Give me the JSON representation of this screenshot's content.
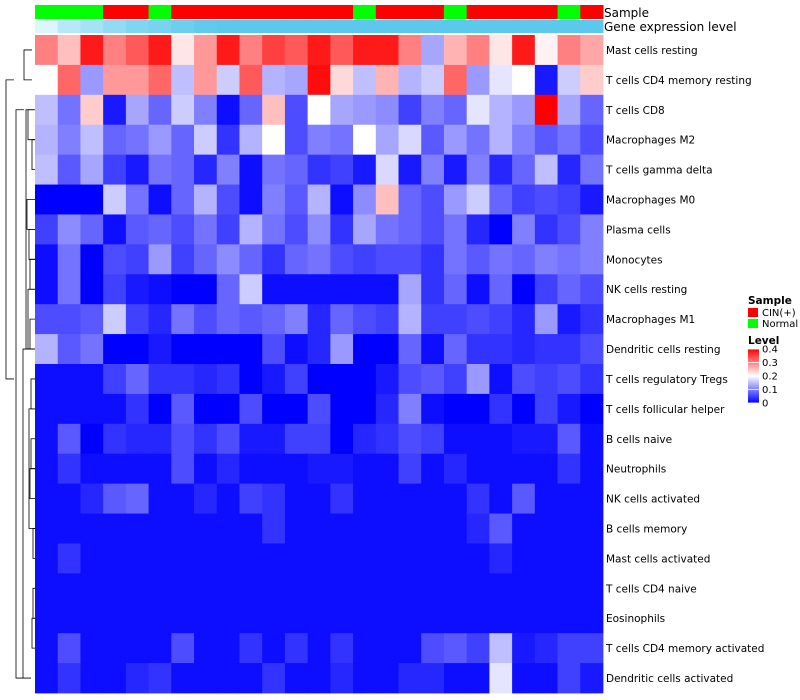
{
  "chart_data": {
    "type": "heatmap",
    "title": "",
    "annotation_tracks": [
      {
        "name": "Sample",
        "values": [
          "N",
          "N",
          "N",
          "C",
          "C",
          "N",
          "C",
          "C",
          "C",
          "C",
          "C",
          "C",
          "C",
          "C",
          "N",
          "C",
          "C",
          "C",
          "N",
          "C",
          "C",
          "C",
          "C",
          "N",
          "C"
        ]
      },
      {
        "name": "Gene expression level",
        "values": [
          0.55,
          0.45,
          0.4,
          0.35,
          0.3,
          0.28,
          0.25,
          0.22,
          0.2,
          0.2,
          0.2,
          0.2,
          0.2,
          0.2,
          0.2,
          0.2,
          0.2,
          0.2,
          0.2,
          0.2,
          0.2,
          0.2,
          0.2,
          0.2,
          0.2
        ]
      }
    ],
    "rows": [
      "Mast cells resting",
      "T cells CD4 memory resting",
      "T cells CD8",
      "Macrophages M2",
      "T cells gamma delta",
      "Macrophages M0",
      "Plasma cells",
      "Monocytes",
      "NK cells resting",
      "Macrophages M1",
      "Dendritic cells resting",
      "T cells regulatory  Tregs",
      "T cells follicular helper",
      "B cells naive",
      "Neutrophils",
      "NK cells activated",
      "B cells memory",
      "Mast cells activated",
      "T cells CD4 naive",
      "Eosinophils",
      "T cells CD4 memory activated",
      "Dendritic cells activated"
    ],
    "matrix": [
      [
        0.3,
        0.25,
        0.38,
        0.3,
        0.33,
        0.38,
        0.22,
        0.28,
        0.38,
        0.3,
        0.35,
        0.33,
        0.38,
        0.33,
        0.38,
        0.38,
        0.3,
        0.13,
        0.26,
        0.3,
        0.22,
        0.38,
        0.21,
        0.3,
        0.27
      ],
      [
        0.2,
        0.32,
        0.12,
        0.28,
        0.28,
        0.32,
        0.15,
        0.28,
        0.16,
        0.33,
        0.14,
        0.13,
        0.39,
        0.23,
        0.15,
        0.26,
        0.14,
        0.16,
        0.32,
        0.12,
        0.18,
        0.2,
        0.02,
        0.16,
        0.24
      ],
      [
        0.15,
        0.09,
        0.24,
        0.02,
        0.13,
        0.08,
        0.16,
        0.1,
        0.01,
        0.08,
        0.25,
        0.06,
        0.2,
        0.13,
        0.12,
        0.11,
        0.05,
        0.1,
        0.08,
        0.18,
        0.14,
        0.12,
        0.4,
        0.13,
        0.08
      ],
      [
        0.14,
        0.1,
        0.15,
        0.08,
        0.09,
        0.12,
        0.08,
        0.16,
        0.04,
        0.14,
        0.2,
        0.06,
        0.1,
        0.09,
        0.2,
        0.13,
        0.17,
        0.07,
        0.12,
        0.09,
        0.14,
        0.1,
        0.07,
        0.09,
        0.06
      ],
      [
        0.15,
        0.07,
        0.13,
        0.05,
        0.02,
        0.09,
        0.08,
        0.03,
        0.1,
        0.01,
        0.09,
        0.08,
        0.04,
        0.05,
        0.02,
        0.17,
        0.02,
        0.1,
        0.02,
        0.1,
        0.03,
        0.08,
        0.15,
        0.03,
        0.09
      ],
      [
        0.0,
        0.0,
        0.0,
        0.16,
        0.09,
        0.01,
        0.08,
        0.14,
        0.06,
        0.01,
        0.1,
        0.07,
        0.14,
        0.01,
        0.11,
        0.25,
        0.08,
        0.06,
        0.12,
        0.16,
        0.08,
        0.05,
        0.06,
        0.05,
        0.02
      ],
      [
        0.05,
        0.11,
        0.08,
        0.01,
        0.07,
        0.08,
        0.06,
        0.09,
        0.05,
        0.14,
        0.09,
        0.06,
        0.11,
        0.04,
        0.13,
        0.09,
        0.08,
        0.06,
        0.09,
        0.03,
        0.0,
        0.1,
        0.04,
        0.06,
        0.1
      ],
      [
        0.01,
        0.09,
        0.0,
        0.06,
        0.05,
        0.12,
        0.05,
        0.08,
        0.11,
        0.08,
        0.04,
        0.08,
        0.09,
        0.06,
        0.05,
        0.06,
        0.06,
        0.04,
        0.09,
        0.07,
        0.09,
        0.08,
        0.1,
        0.09,
        0.1
      ],
      [
        0.01,
        0.09,
        0.0,
        0.05,
        0.02,
        0.01,
        0.0,
        0.0,
        0.08,
        0.16,
        0.01,
        0.01,
        0.01,
        0.01,
        0.01,
        0.01,
        0.13,
        0.04,
        0.08,
        0.01,
        0.08,
        0.0,
        0.05,
        0.08,
        0.06
      ],
      [
        0.06,
        0.06,
        0.07,
        0.16,
        0.05,
        0.03,
        0.09,
        0.06,
        0.08,
        0.07,
        0.08,
        0.1,
        0.03,
        0.08,
        0.06,
        0.05,
        0.14,
        0.05,
        0.05,
        0.06,
        0.05,
        0.03,
        0.12,
        0.02,
        0.04
      ],
      [
        0.14,
        0.07,
        0.09,
        0.0,
        0.0,
        0.02,
        0.0,
        0.0,
        0.0,
        0.0,
        0.06,
        0.01,
        0.03,
        0.12,
        0.0,
        0.0,
        0.08,
        0.01,
        0.08,
        0.04,
        0.04,
        0.03,
        0.04,
        0.04,
        0.06
      ],
      [
        0.01,
        0.01,
        0.01,
        0.05,
        0.08,
        0.04,
        0.04,
        0.03,
        0.04,
        0.0,
        0.02,
        0.05,
        0.0,
        0.0,
        0.0,
        0.02,
        0.06,
        0.07,
        0.05,
        0.12,
        0.01,
        0.06,
        0.05,
        0.06,
        0.04
      ],
      [
        0.01,
        0.01,
        0.01,
        0.01,
        0.04,
        0.0,
        0.07,
        0.0,
        0.0,
        0.06,
        0.0,
        0.0,
        0.06,
        0.0,
        0.0,
        0.03,
        0.1,
        0.01,
        0.0,
        0.0,
        0.04,
        0.0,
        0.05,
        0.02,
        0.0
      ],
      [
        0.01,
        0.07,
        0.0,
        0.04,
        0.03,
        0.03,
        0.06,
        0.04,
        0.06,
        0.02,
        0.02,
        0.05,
        0.05,
        0.0,
        0.03,
        0.04,
        0.06,
        0.05,
        0.01,
        0.01,
        0.01,
        0.02,
        0.02,
        0.07,
        0.01
      ],
      [
        0.01,
        0.04,
        0.01,
        0.01,
        0.01,
        0.01,
        0.06,
        0.01,
        0.03,
        0.01,
        0.01,
        0.01,
        0.02,
        0.02,
        0.01,
        0.01,
        0.05,
        0.01,
        0.03,
        0.01,
        0.01,
        0.01,
        0.01,
        0.04,
        0.01
      ],
      [
        0.01,
        0.01,
        0.03,
        0.07,
        0.08,
        0.01,
        0.01,
        0.03,
        0.01,
        0.05,
        0.04,
        0.01,
        0.01,
        0.04,
        0.01,
        0.01,
        0.01,
        0.01,
        0.01,
        0.04,
        0.01,
        0.07,
        0.01,
        0.01,
        0.01
      ],
      [
        0.01,
        0.01,
        0.01,
        0.01,
        0.01,
        0.01,
        0.01,
        0.01,
        0.01,
        0.01,
        0.04,
        0.01,
        0.01,
        0.01,
        0.01,
        0.01,
        0.01,
        0.01,
        0.01,
        0.03,
        0.07,
        0.01,
        0.01,
        0.01,
        0.01
      ],
      [
        0.01,
        0.04,
        0.01,
        0.01,
        0.01,
        0.01,
        0.01,
        0.01,
        0.01,
        0.01,
        0.01,
        0.01,
        0.01,
        0.01,
        0.01,
        0.01,
        0.01,
        0.01,
        0.01,
        0.01,
        0.03,
        0.01,
        0.01,
        0.01,
        0.01
      ],
      [
        0.01,
        0.01,
        0.01,
        0.01,
        0.01,
        0.01,
        0.01,
        0.01,
        0.01,
        0.01,
        0.01,
        0.01,
        0.01,
        0.01,
        0.01,
        0.01,
        0.01,
        0.01,
        0.01,
        0.01,
        0.01,
        0.01,
        0.01,
        0.01,
        0.01
      ],
      [
        0.01,
        0.01,
        0.01,
        0.01,
        0.01,
        0.01,
        0.01,
        0.01,
        0.01,
        0.01,
        0.01,
        0.01,
        0.01,
        0.01,
        0.01,
        0.01,
        0.01,
        0.01,
        0.01,
        0.01,
        0.01,
        0.01,
        0.01,
        0.01,
        0.01
      ],
      [
        0.01,
        0.06,
        0.01,
        0.01,
        0.01,
        0.01,
        0.06,
        0.01,
        0.01,
        0.04,
        0.01,
        0.04,
        0.01,
        0.04,
        0.01,
        0.01,
        0.01,
        0.06,
        0.07,
        0.05,
        0.15,
        0.02,
        0.03,
        0.05,
        0.05
      ],
      [
        0.01,
        0.04,
        0.01,
        0.01,
        0.03,
        0.04,
        0.01,
        0.01,
        0.01,
        0.01,
        0.04,
        0.01,
        0.01,
        0.03,
        0.01,
        0.01,
        0.03,
        0.03,
        0.01,
        0.01,
        0.18,
        0.01,
        0.01,
        0.05,
        0.02
      ]
    ],
    "scale_range": [
      0,
      0.4
    ],
    "colors": {
      "low": "#0000FF",
      "mid": "#FFFFFF",
      "high": "#FF0000",
      "cin": "#FF0000",
      "normal": "#00FF00",
      "track_light": "#DDF5FC",
      "track_dark": "#5BC8EC"
    },
    "legend_position": "right",
    "legend": {
      "sample_title": "Sample",
      "sample_entries": [
        {
          "code": "C",
          "label": "CIN(+)"
        },
        {
          "code": "N",
          "label": "Normal"
        }
      ],
      "level_title": "Level",
      "level_ticks": [
        "0",
        "0.1",
        "0.2",
        "0.3",
        "0.4"
      ],
      "level_tick_values": [
        0,
        0.1,
        0.2,
        0.3,
        0.4
      ]
    }
  }
}
